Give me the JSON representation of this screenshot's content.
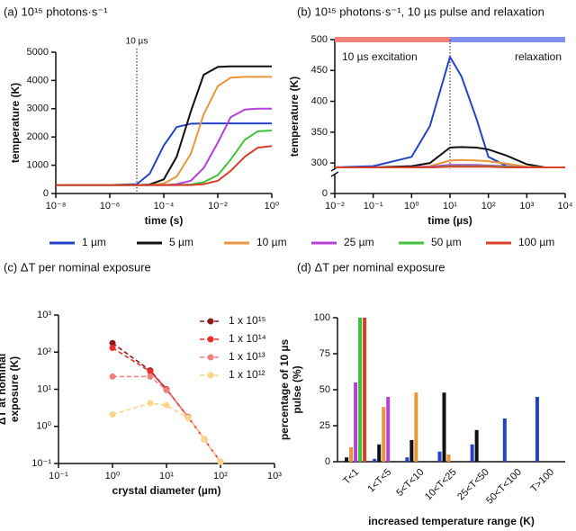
{
  "chart_data": [
    {
      "type": "line",
      "title": "(a) 10¹⁵ photons·s⁻¹",
      "xlabel": "time (s)",
      "ylabel": [
        "temperature (K)"
      ],
      "xscale": "log",
      "x": [
        1e-08,
        1e-06,
        1e-05,
        3e-05,
        0.0001,
        0.0003,
        0.001,
        0.003,
        0.01,
        0.03,
        0.1,
        0.3,
        1
      ],
      "xlim": [
        1e-08,
        1
      ],
      "xticks": [
        {
          "value": 1e-08,
          "label": "10⁻⁸"
        },
        {
          "value": 1e-06,
          "label": "10⁻⁶"
        },
        {
          "value": 0.0001,
          "label": "10⁻⁴"
        },
        {
          "value": 0.01,
          "label": "10⁻²"
        },
        {
          "value": 1,
          "label": "10⁰"
        }
      ],
      "ylim": [
        0,
        5000
      ],
      "yticks": [
        0,
        1000,
        2000,
        3000,
        4000,
        5000
      ],
      "annotation": {
        "text": "10 µs",
        "x": 1e-05
      },
      "legend": "bottom",
      "series": [
        {
          "name": "1 µm",
          "color": "#2442c8",
          "values": [
            300,
            300,
            330,
            700,
            1700,
            2350,
            2470,
            2480,
            2480,
            2480,
            2480,
            2480,
            2480
          ]
        },
        {
          "name": "5 µm",
          "color": "#111111",
          "values": [
            300,
            300,
            300,
            320,
            500,
            1300,
            2900,
            4200,
            4480,
            4500,
            4500,
            4500,
            4500
          ]
        },
        {
          "name": "10 µm",
          "color": "#e8963c",
          "values": [
            300,
            300,
            300,
            300,
            350,
            600,
            1400,
            2800,
            3800,
            4100,
            4130,
            4130,
            4130
          ]
        },
        {
          "name": "25 µm",
          "color": "#b63fd6",
          "values": [
            300,
            300,
            300,
            300,
            300,
            330,
            450,
            900,
            1800,
            2700,
            2970,
            3000,
            3000
          ]
        },
        {
          "name": "50 µm",
          "color": "#3ec23a",
          "values": [
            300,
            300,
            300,
            300,
            300,
            300,
            320,
            400,
            650,
            1200,
            1900,
            2200,
            2230
          ]
        },
        {
          "name": "100 µm",
          "color": "#d8402a",
          "values": [
            300,
            300,
            300,
            300,
            300,
            300,
            300,
            330,
            450,
            800,
            1300,
            1620,
            1680
          ]
        }
      ]
    },
    {
      "type": "line",
      "title": "(b) 10¹⁵ photons·s⁻¹, 10 µs pulse and relaxation",
      "xlabel": "time (µs)",
      "ylabel": [
        "temperature (K)"
      ],
      "xscale": "log",
      "x": [
        0.01,
        0.1,
        1,
        3,
        10,
        20,
        50,
        100,
        300,
        1000,
        3000,
        10000
      ],
      "xlim": [
        0.01,
        10000
      ],
      "xticks": [
        {
          "value": 0.01,
          "label": "10⁻²"
        },
        {
          "value": 0.1,
          "label": "10⁻¹"
        },
        {
          "value": 1,
          "label": "10⁰"
        },
        {
          "value": 10,
          "label": "10¹"
        },
        {
          "value": 100,
          "label": "10²"
        },
        {
          "value": 1000,
          "label": "10³"
        },
        {
          "value": 10000,
          "label": "10⁴"
        }
      ],
      "ylim": [
        290,
        500
      ],
      "yticks": [
        300,
        350,
        400,
        450,
        500
      ],
      "ybreak_tick": 0,
      "pulse_end": 10,
      "annotations": [
        {
          "text": "10 µs excitation",
          "color": "#f4807a"
        },
        {
          "text": "relaxation",
          "color": "#7f8ff0"
        }
      ],
      "series": [
        {
          "color": "#2442c8",
          "values": [
            293,
            295,
            310,
            360,
            472,
            440,
            370,
            310,
            295,
            293,
            293,
            293
          ]
        },
        {
          "color": "#111111",
          "values": [
            293,
            293,
            295,
            300,
            325,
            326,
            325,
            322,
            312,
            298,
            293,
            293
          ]
        },
        {
          "color": "#e8963c",
          "values": [
            293,
            293,
            293,
            295,
            304,
            305,
            304,
            303,
            299,
            294,
            293,
            293
          ]
        },
        {
          "color": "#b63fd6",
          "values": [
            293,
            293,
            293,
            294,
            297,
            297,
            297,
            296,
            295,
            293,
            293,
            293
          ]
        },
        {
          "color": "#3ec23a",
          "values": [
            293,
            293,
            293,
            293,
            295,
            295,
            295,
            295,
            294,
            293,
            293,
            293
          ]
        },
        {
          "color": "#d8402a",
          "values": [
            293,
            293,
            293,
            293,
            294,
            294,
            294,
            294,
            293,
            293,
            293,
            293
          ]
        }
      ]
    },
    {
      "type": "line",
      "title": "(c) ΔT per nominal exposure",
      "xlabel": "crystal diameter (µm)",
      "ylabel": [
        "ΔT at nominal",
        "exposure (K)"
      ],
      "xscale": "log",
      "yscale": "log",
      "dashed": true,
      "markers": true,
      "x": [
        1,
        5,
        10,
        25,
        50,
        100
      ],
      "xlim": [
        0.1,
        1000
      ],
      "xticks": [
        {
          "value": 0.1,
          "label": "10⁻¹"
        },
        {
          "value": 1,
          "label": "10⁰"
        },
        {
          "value": 10,
          "label": "10¹"
        },
        {
          "value": 100,
          "label": "10²"
        },
        {
          "value": 1000,
          "label": "10³"
        }
      ],
      "ylim": [
        0.1,
        1000
      ],
      "yticks": [
        {
          "value": 0.1,
          "label": "10⁻¹"
        },
        {
          "value": 1,
          "label": "10⁰"
        },
        {
          "value": 10,
          "label": "10¹"
        },
        {
          "value": 100,
          "label": "10²"
        },
        {
          "value": 1000,
          "label": "10³"
        }
      ],
      "legend": "top-right",
      "series": [
        {
          "name": "1 x 10¹⁵",
          "color": "#8b1a1a",
          "values": [
            175,
            32,
            10,
            1.8,
            0.45,
            0.11
          ]
        },
        {
          "name": "1 x 10¹⁴",
          "color": "#e8302a",
          "values": [
            130,
            30,
            10,
            1.8,
            0.45,
            0.11
          ]
        },
        {
          "name": "1 x 10¹³",
          "color": "#f08080",
          "values": [
            22,
            22,
            9.5,
            1.8,
            0.45,
            0.11
          ]
        },
        {
          "name": "1 x 10¹²",
          "color": "#fdd58a",
          "values": [
            2.1,
            4.2,
            3.7,
            1.7,
            0.45,
            0.11
          ]
        }
      ]
    },
    {
      "type": "bar",
      "title": "(d) ΔT per nominal exposure",
      "xlabel": "increased temperature range (K)",
      "ylabel": [
        "percentage of 10 µs",
        "pulse (%)"
      ],
      "categories": [
        "T<1",
        "1<T<5",
        "5<T<10",
        "10<T<25",
        "25<T<50",
        "50<T<100",
        "T>100"
      ],
      "ylim": [
        0,
        100
      ],
      "yticks": [
        0,
        25,
        50,
        75,
        100
      ],
      "series": [
        {
          "color": "#2442c8",
          "values": [
            0,
            2,
            3,
            7,
            12,
            30,
            45
          ]
        },
        {
          "color": "#111111",
          "values": [
            3,
            12,
            15,
            48,
            22,
            0,
            0
          ]
        },
        {
          "color": "#e8963c",
          "values": [
            10,
            38,
            48,
            5,
            0,
            0,
            0
          ]
        },
        {
          "color": "#b63fd6",
          "values": [
            55,
            45,
            0,
            0,
            0,
            0,
            0
          ]
        },
        {
          "color": "#3ec23a",
          "values": [
            100,
            0,
            0,
            0,
            0,
            0,
            0
          ]
        },
        {
          "color": "#d8402a",
          "values": [
            100,
            0,
            0,
            0,
            0,
            0,
            0
          ]
        }
      ]
    }
  ]
}
